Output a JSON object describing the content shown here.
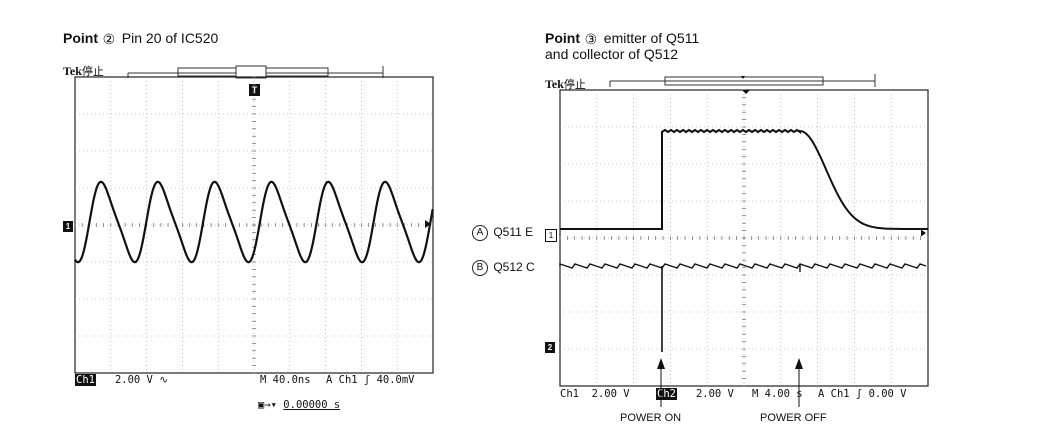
{
  "left": {
    "title_bold": "Point",
    "title_marker": "②",
    "title_rest": "Pin 20 of IC520",
    "tek": "Tek",
    "tek_status": "停止",
    "trigger_marker": "T",
    "channel_marker": "1",
    "status": {
      "ch": "Ch1",
      "volts": "2.00 V",
      "coupling_icon": "ac-coupling-icon",
      "timebase": "M 40.0ns",
      "trigger": "A  Ch1  ʃ  40.0mV"
    },
    "trigger_pos": "0.00000 s"
  },
  "right": {
    "title_bold": "Point",
    "title_marker": "③",
    "title_line1": "emitter of Q511",
    "title_line2": "and collector of Q512",
    "tek": "Tek",
    "tek_status": "停止",
    "trace_a": {
      "marker": "A",
      "label": "Q511 E"
    },
    "trace_b": {
      "marker": "B",
      "label": "Q512 C"
    },
    "ch1_marker": "1",
    "ch2_marker": "2",
    "status": {
      "ch1": "Ch1",
      "ch1_volts": "2.00 V",
      "ch2": "Ch2",
      "ch2_volts": "2.00 V",
      "timebase": "M 4.00 s",
      "trigger": "A  Ch1  ʃ    0.00 V"
    },
    "power_on": "POWER ON",
    "power_off": "POWER OFF"
  }
}
